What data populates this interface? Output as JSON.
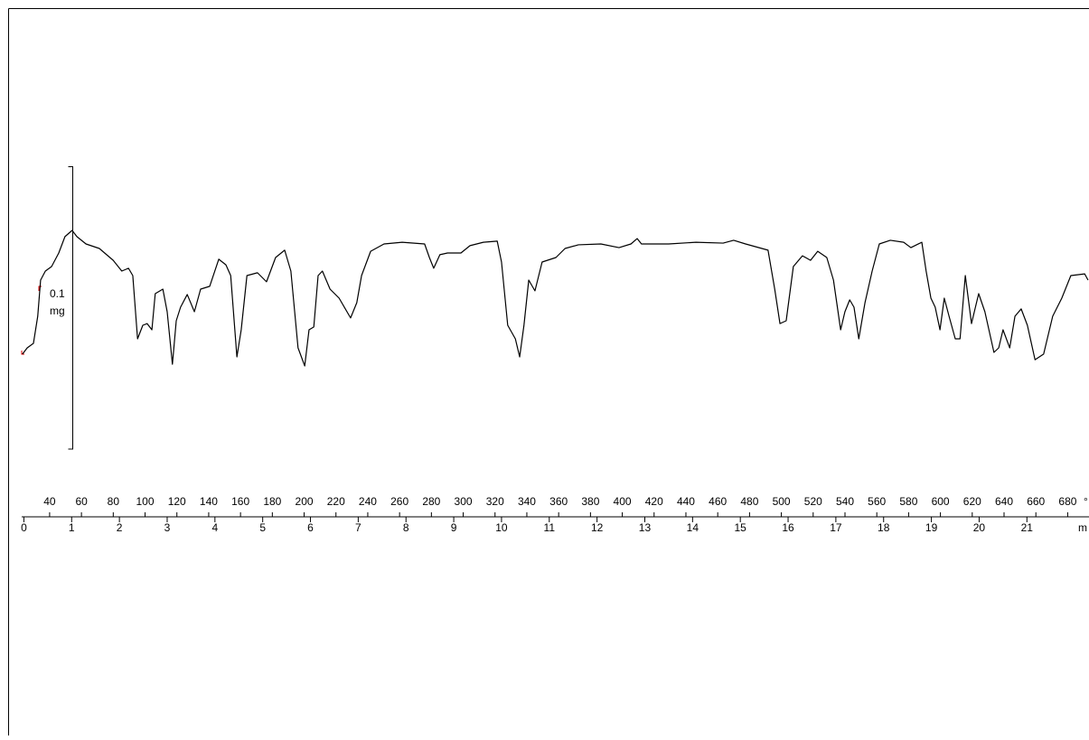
{
  "chart_data": {
    "type": "line",
    "x_unit": "m",
    "x2_unit": "°",
    "scale_bar_value": 0.1,
    "scale_bar_unit": "mg",
    "xlim": [
      -0.5,
      22.3
    ],
    "xticks": [
      0,
      1,
      2,
      3,
      4,
      5,
      6,
      7,
      8,
      9,
      10,
      11,
      12,
      13,
      14,
      15,
      16,
      17,
      18,
      19,
      20,
      21
    ],
    "x2lim": [
      8.8,
      693.4
    ],
    "x2ticks": [
      40,
      60,
      80,
      100,
      120,
      140,
      160,
      180,
      200,
      220,
      240,
      260,
      280,
      300,
      320,
      340,
      360,
      380,
      400,
      420,
      440,
      460,
      480,
      500,
      520,
      540,
      560,
      580,
      600,
      620,
      640,
      660,
      680
    ],
    "ylim": [
      0,
      0.16
    ],
    "series": [
      {
        "color": "#000000",
        "x": [
          -0.03,
          0.07,
          0.2,
          0.29,
          0.35,
          0.45,
          0.58,
          0.73,
          0.86,
          1.01,
          1.11,
          1.3,
          1.58,
          1.87,
          2.05,
          2.19,
          2.28,
          2.38,
          2.49,
          2.58,
          2.68,
          2.75,
          2.91,
          3.0,
          3.11,
          3.19,
          3.28,
          3.42,
          3.57,
          3.7,
          3.89,
          4.08,
          4.23,
          4.33,
          4.46,
          4.55,
          4.67,
          4.89,
          5.08,
          5.27,
          5.46,
          5.59,
          5.74,
          5.88,
          5.97,
          6.07,
          6.16,
          6.25,
          6.41,
          6.6,
          6.84,
          6.97,
          7.07,
          7.26,
          7.54,
          7.92,
          8.39,
          8.49,
          8.58,
          8.71,
          8.87,
          9.15,
          9.34,
          9.62,
          9.91,
          10.0,
          10.13,
          10.29,
          10.38,
          10.47,
          10.57,
          10.7,
          10.85,
          11.14,
          11.33,
          11.61,
          12.08,
          12.46,
          12.71,
          12.84,
          12.93,
          13.5,
          14.07,
          14.64,
          14.86,
          15.11,
          15.58,
          15.72,
          15.83,
          15.96,
          16.11,
          16.3,
          16.47,
          16.62,
          16.81,
          16.95,
          17.1,
          17.19,
          17.29,
          17.38,
          17.48,
          17.61,
          17.76,
          17.91,
          18.14,
          18.42,
          18.57,
          18.8,
          18.89,
          18.99,
          19.08,
          19.18,
          19.27,
          19.37,
          19.5,
          19.6,
          19.71,
          19.84,
          19.99,
          20.12,
          20.31,
          20.41,
          20.5,
          20.64,
          20.75,
          20.88,
          21.01,
          21.17,
          21.35,
          21.54,
          21.73,
          21.92,
          22.21,
          22.28
        ],
        "values": [
          0.0378,
          0.04,
          0.0416,
          0.0512,
          0.064,
          0.0672,
          0.0688,
          0.0736,
          0.0794,
          0.0816,
          0.0794,
          0.0768,
          0.0752,
          0.071,
          0.0672,
          0.0682,
          0.0656,
          0.0432,
          0.048,
          0.0486,
          0.0464,
          0.0592,
          0.0608,
          0.0528,
          0.0342,
          0.0496,
          0.0544,
          0.0589,
          0.0528,
          0.0608,
          0.0618,
          0.0714,
          0.0694,
          0.0656,
          0.0368,
          0.0464,
          0.0656,
          0.0666,
          0.0634,
          0.072,
          0.0746,
          0.0672,
          0.04,
          0.0336,
          0.0464,
          0.0474,
          0.0656,
          0.0672,
          0.0608,
          0.0576,
          0.0506,
          0.056,
          0.0656,
          0.0742,
          0.0768,
          0.0774,
          0.0768,
          0.072,
          0.0682,
          0.073,
          0.0736,
          0.0736,
          0.0762,
          0.0774,
          0.0778,
          0.0704,
          0.048,
          0.0432,
          0.0368,
          0.048,
          0.064,
          0.0602,
          0.0704,
          0.072,
          0.0752,
          0.0765,
          0.0768,
          0.0755,
          0.0768,
          0.0787,
          0.0768,
          0.0768,
          0.0774,
          0.0771,
          0.0781,
          0.0768,
          0.0746,
          0.0608,
          0.0486,
          0.0496,
          0.0688,
          0.0726,
          0.071,
          0.0742,
          0.072,
          0.064,
          0.0464,
          0.0528,
          0.057,
          0.0544,
          0.0432,
          0.056,
          0.0672,
          0.0768,
          0.0781,
          0.0774,
          0.0755,
          0.0774,
          0.0672,
          0.0576,
          0.0544,
          0.0464,
          0.0576,
          0.0512,
          0.0432,
          0.0432,
          0.0656,
          0.0486,
          0.0592,
          0.0528,
          0.0384,
          0.04,
          0.0464,
          0.04,
          0.0512,
          0.0538,
          0.048,
          0.0358,
          0.0378,
          0.0512,
          0.0576,
          0.0656,
          0.0662,
          0.064
        ]
      }
    ]
  }
}
